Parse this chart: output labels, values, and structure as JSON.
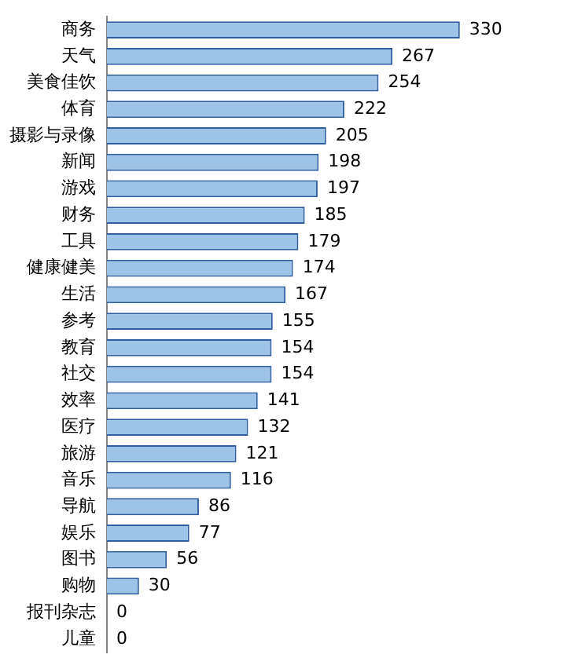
{
  "chart_data": {
    "type": "bar",
    "orientation": "horizontal",
    "categories": [
      "商务",
      "天气",
      "美食佳饮",
      "体育",
      "摄影与录像",
      "新闻",
      "游戏",
      "财务",
      "工具",
      "健康健美",
      "生活",
      "参考",
      "教育",
      "社交",
      "效率",
      "医疗",
      "旅游",
      "音乐",
      "导航",
      "娱乐",
      "图书",
      "购物",
      "报刊杂志",
      "儿童"
    ],
    "values": [
      330,
      267,
      254,
      222,
      205,
      198,
      197,
      185,
      179,
      174,
      167,
      155,
      154,
      154,
      141,
      132,
      121,
      116,
      86,
      77,
      56,
      30,
      0,
      0
    ],
    "color": "#9dc3e6",
    "data_labels": true,
    "grid": false,
    "legend": false,
    "tick_labels": "y"
  }
}
